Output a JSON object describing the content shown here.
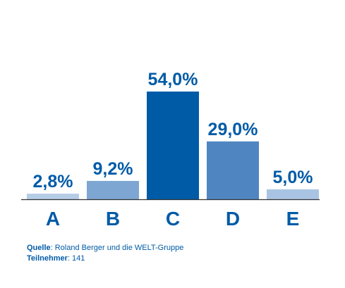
{
  "chart_data": {
    "type": "bar",
    "categories": [
      "A",
      "B",
      "C",
      "D",
      "E"
    ],
    "values": [
      2.8,
      9.2,
      54.0,
      29.0,
      5.0
    ],
    "value_labels": [
      "2,8%",
      "9,2%",
      "54,0%",
      "29,0%",
      "5,0%"
    ],
    "bar_colors": [
      "#b5cce6",
      "#7ea6d3",
      "#005ba7",
      "#4f86c1",
      "#a9c4e2"
    ],
    "ylim": [
      0,
      54
    ],
    "grid": false,
    "legend": "none",
    "axis_color": "#333333",
    "text_color": "#005ba7"
  },
  "footer": {
    "source_label": "Quelle",
    "source_text": ": Roland Berger und die WELT-Gruppe",
    "participants_label": "Teilnehmer",
    "participants_text": ": 141"
  }
}
